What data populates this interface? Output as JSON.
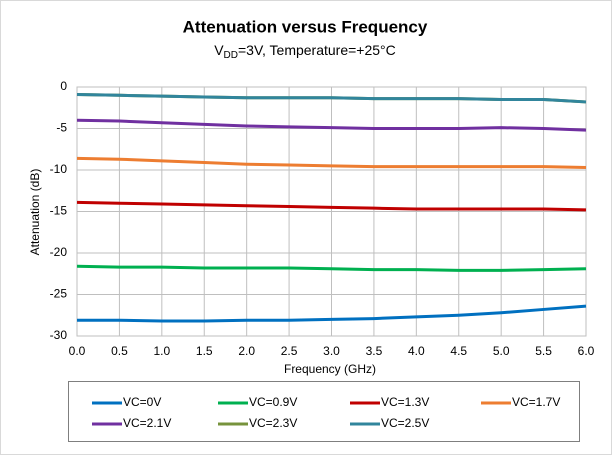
{
  "chart_data": {
    "type": "line",
    "title": "Attenuation versus Frequency",
    "subtitle": [
      "V",
      "DD",
      "=3V, Temperature=+25°C"
    ],
    "x_label": "Frequency (GHz)",
    "y_label": "Attenuation (dB)",
    "x": [
      0,
      0.5,
      1,
      1.5,
      2,
      2.5,
      3,
      3.5,
      4,
      4.5,
      5,
      5.5,
      6
    ],
    "series": [
      {
        "name": "VC=0V",
        "color": "#0070c0",
        "values": [
          -28.1,
          -28.1,
          -28.2,
          -28.2,
          -28.1,
          -28.1,
          -28.0,
          -27.9,
          -27.7,
          -27.5,
          -27.2,
          -26.8,
          -26.4
        ]
      },
      {
        "name": "VC=0.9V",
        "color": "#00b050",
        "values": [
          -21.6,
          -21.7,
          -21.7,
          -21.8,
          -21.8,
          -21.8,
          -21.9,
          -22.0,
          -22.0,
          -22.1,
          -22.1,
          -22.0,
          -21.9
        ]
      },
      {
        "name": "VC=1.3V",
        "color": "#c00000",
        "values": [
          -13.9,
          -14.0,
          -14.1,
          -14.2,
          -14.3,
          -14.4,
          -14.5,
          -14.6,
          -14.7,
          -14.7,
          -14.7,
          -14.7,
          -14.8
        ]
      },
      {
        "name": "VC=1.7V",
        "color": "#ed7d31",
        "values": [
          -8.6,
          -8.7,
          -8.9,
          -9.1,
          -9.3,
          -9.4,
          -9.5,
          -9.6,
          -9.6,
          -9.6,
          -9.6,
          -9.6,
          -9.7
        ]
      },
      {
        "name": "VC=2.1V",
        "color": "#7030a0",
        "values": [
          -4.0,
          -4.1,
          -4.3,
          -4.5,
          -4.7,
          -4.8,
          -4.9,
          -5.0,
          -5.0,
          -5.0,
          -4.9,
          -5.0,
          -5.2
        ]
      },
      {
        "name": "VC=2.3V",
        "color": "#77933c",
        "values": [
          -0.9,
          -1.0,
          -1.1,
          -1.2,
          -1.3,
          -1.3,
          -1.3,
          -1.4,
          -1.4,
          -1.4,
          -1.5,
          -1.5,
          -1.8
        ]
      },
      {
        "name": "VC=2.5V",
        "color": "#31859c",
        "values": [
          -0.9,
          -1.0,
          -1.1,
          -1.2,
          -1.3,
          -1.3,
          -1.3,
          -1.4,
          -1.4,
          -1.4,
          -1.5,
          -1.5,
          -1.8
        ]
      }
    ],
    "xlim": [
      0,
      6
    ],
    "xticks": [
      {
        "value": 0,
        "label": "0.0"
      },
      {
        "value": 0.5,
        "label": "0.5"
      },
      {
        "value": 1,
        "label": "1.0"
      },
      {
        "value": 1.5,
        "label": "1.5"
      },
      {
        "value": 2,
        "label": "2.0"
      },
      {
        "value": 2.5,
        "label": "2.5"
      },
      {
        "value": 3,
        "label": "3.0"
      },
      {
        "value": 3.5,
        "label": "3.5"
      },
      {
        "value": 4,
        "label": "4.0"
      },
      {
        "value": 4.5,
        "label": "4.5"
      },
      {
        "value": 5,
        "label": "5.0"
      },
      {
        "value": 5.5,
        "label": "5.5"
      },
      {
        "value": 6,
        "label": "6.0"
      }
    ],
    "ylim": [
      -30,
      0
    ],
    "yticks": [
      0,
      -5,
      -10,
      -15,
      -20,
      -25,
      -30
    ],
    "grid": true,
    "legend": "bottom"
  }
}
